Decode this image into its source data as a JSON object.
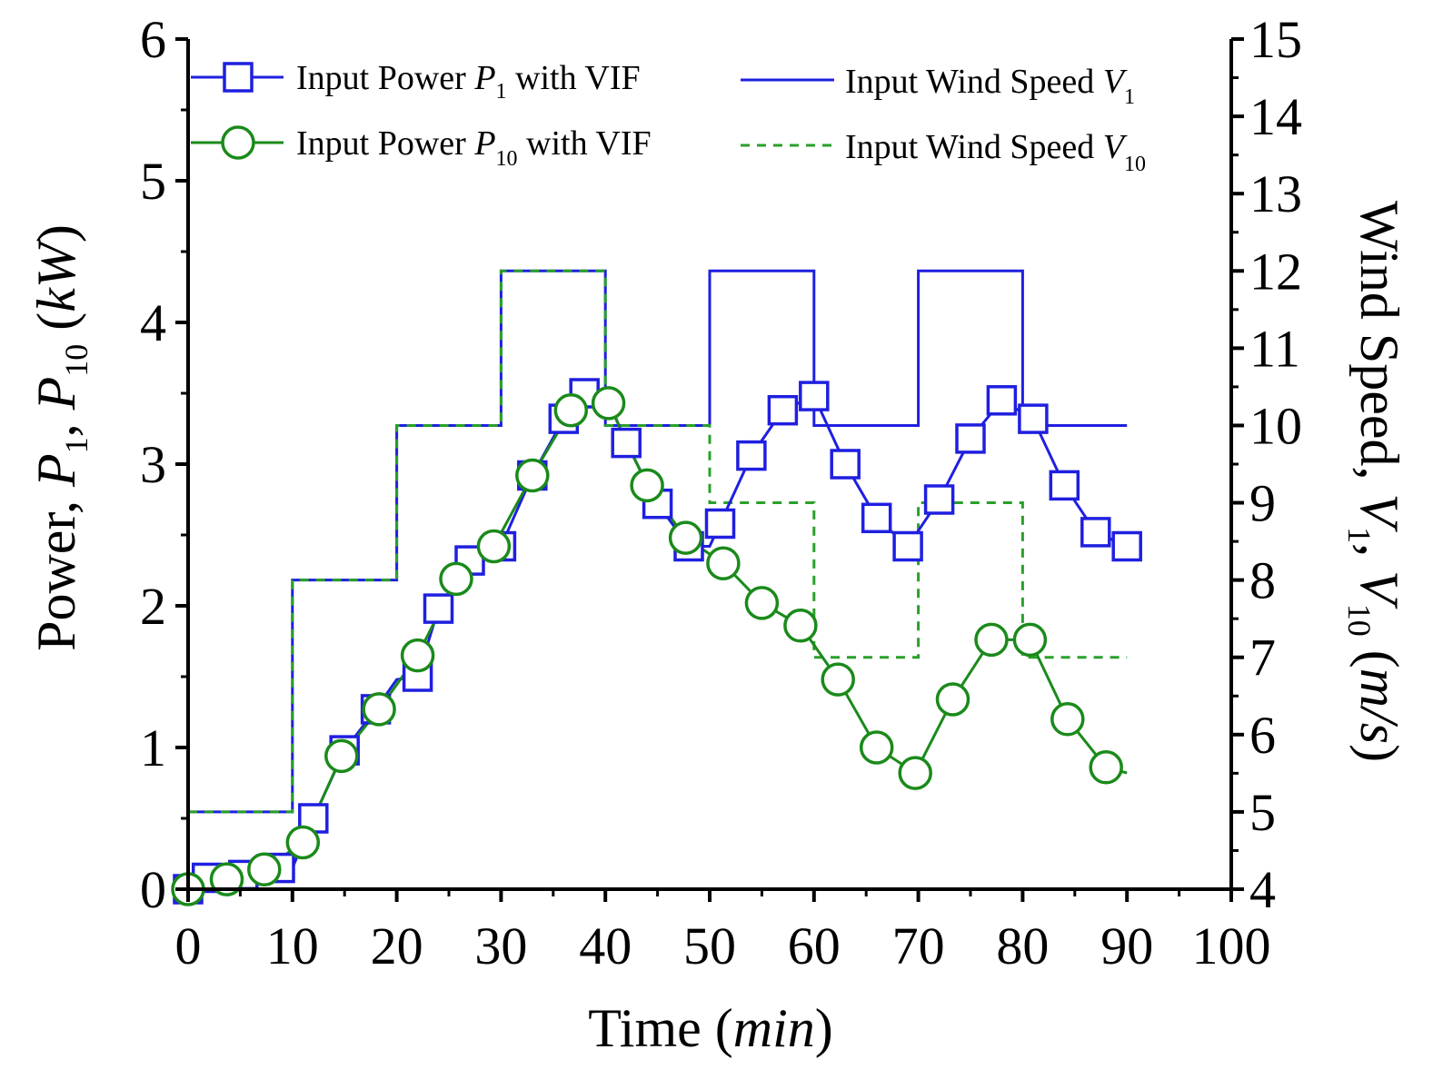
{
  "chart_data": {
    "type": "line",
    "title": "",
    "xlabel": {
      "text": "Time (",
      "italic": "min",
      "close": ")"
    },
    "ylabel_left": {
      "text": "Power, ",
      "p": "P",
      "sub1": "1",
      "sep": ", ",
      "sub10": "10",
      "unit_open": " (",
      "unit": "kW",
      "unit_close": ")"
    },
    "ylabel_right": {
      "text": "Wind Speed, ",
      "v": "V",
      "sub1": "1",
      "sep": ", ",
      "sub10": "10",
      "unit_open": " (",
      "unit": "m/s",
      "unit_close": ")"
    },
    "xlim": [
      0,
      100
    ],
    "ylim_left": [
      0,
      6
    ],
    "ylim_right": [
      4,
      15
    ],
    "x_ticks": [
      "0",
      "10",
      "20",
      "30",
      "40",
      "50",
      "60",
      "70",
      "80",
      "90",
      "100"
    ],
    "y_left_ticks": [
      "0",
      "1",
      "2",
      "3",
      "4",
      "5",
      "6"
    ],
    "y_right_ticks": [
      "4",
      "5",
      "6",
      "7",
      "8",
      "9",
      "10",
      "11",
      "12",
      "13",
      "14",
      "15"
    ],
    "legend": {
      "p1": {
        "prefix": "Input Power ",
        "sym": "P",
        "sub": "1",
        "suffix": " with VIF"
      },
      "p10": {
        "prefix": "Input Power ",
        "sym": "P",
        "sub": "10",
        "suffix": " with VIF"
      },
      "v1": {
        "prefix": "Input Wind Speed ",
        "sym": "V",
        "sub": "1"
      },
      "v10": {
        "prefix": "Input Wind Speed ",
        "sym": "V",
        "sub": "10"
      }
    },
    "colors": {
      "p1": "#1f1fe0",
      "p10": "#1a8a1a",
      "v1": "#1f1fe0",
      "v10": "#2aa02a"
    },
    "series": [
      {
        "name": "Input Power P1 with VIF",
        "axis": "left",
        "marker": "square",
        "x": [
          0,
          1.8,
          5.3,
          8.8,
          10,
          12,
          15,
          18,
          20,
          22,
          24,
          27,
          30,
          33,
          36,
          38,
          40,
          42,
          45,
          48,
          50,
          51,
          54,
          57,
          60,
          63,
          66,
          69,
          72,
          75,
          78,
          81,
          84,
          87,
          90
        ],
        "y": [
          0,
          0.08,
          0.1,
          0.15,
          0.15,
          0.5,
          0.98,
          1.27,
          1.48,
          1.5,
          1.98,
          2.32,
          2.42,
          2.92,
          3.32,
          3.5,
          3.5,
          3.15,
          2.72,
          2.42,
          2.42,
          2.58,
          3.06,
          3.38,
          3.48,
          3.0,
          2.62,
          2.42,
          2.75,
          3.18,
          3.45,
          3.32,
          2.85,
          2.52,
          2.42
        ]
      },
      {
        "name": "Input Power P10 with VIF",
        "axis": "left",
        "marker": "circle",
        "x": [
          0,
          3.7,
          7.3,
          11,
          14.7,
          18.3,
          22,
          25.7,
          29.3,
          33,
          36.7,
          40.3,
          44,
          47.7,
          51.3,
          55,
          58.7,
          62.3,
          66,
          69.7,
          73.3,
          77,
          80.7,
          84.3,
          88,
          90
        ],
        "y": [
          0,
          0.07,
          0.14,
          0.33,
          0.94,
          1.27,
          1.65,
          2.19,
          2.42,
          2.92,
          3.38,
          3.43,
          2.85,
          2.48,
          2.3,
          2.02,
          1.86,
          1.48,
          1.0,
          0.82,
          1.34,
          1.76,
          1.76,
          1.2,
          0.86,
          0.82
        ]
      },
      {
        "name": "Input Wind Speed V1",
        "axis": "right",
        "style": "step",
        "x": [
          0,
          10,
          20,
          30,
          40,
          50,
          60,
          70,
          80,
          90
        ],
        "y": [
          5,
          8,
          10,
          12,
          10,
          12,
          10,
          12,
          10,
          10
        ]
      },
      {
        "name": "Input Wind Speed V10",
        "axis": "right",
        "style": "step-dashed",
        "x": [
          0,
          10,
          20,
          30,
          40,
          50,
          60,
          70,
          80,
          90
        ],
        "y": [
          5,
          8,
          10,
          12,
          10,
          9,
          7,
          9,
          7,
          7
        ]
      }
    ]
  }
}
